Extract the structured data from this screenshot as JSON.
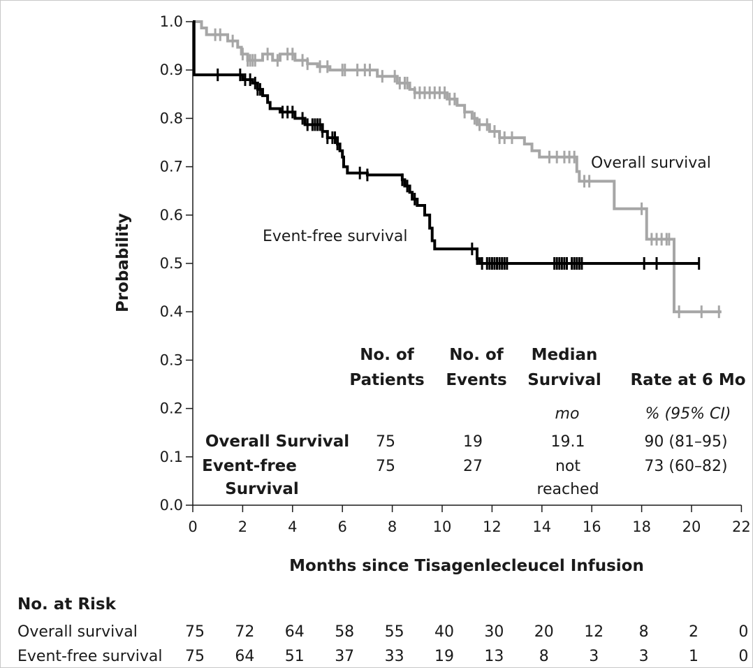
{
  "chart_data": {
    "type": "line",
    "subtype": "kaplan-meier",
    "xlabel": "Months since Tisagenlecleucel Infusion",
    "ylabel": "Probability",
    "xlim": [
      0,
      22
    ],
    "ylim": [
      0.0,
      1.0
    ],
    "x_ticks": [
      "0",
      "2",
      "4",
      "6",
      "8",
      "10",
      "12",
      "14",
      "16",
      "18",
      "20",
      "22"
    ],
    "y_ticks": [
      "0.0",
      "0.1",
      "0.2",
      "0.3",
      "0.4",
      "0.5",
      "0.6",
      "0.7",
      "0.8",
      "0.9",
      "1.0"
    ],
    "series": [
      {
        "name": "Overall survival",
        "color": "#a6a6a6",
        "steps": [
          [
            0,
            1.0
          ],
          [
            0.35,
            0.987
          ],
          [
            0.55,
            0.973
          ],
          [
            1.4,
            0.96
          ],
          [
            1.8,
            0.947
          ],
          [
            1.95,
            0.933
          ],
          [
            2.2,
            0.92
          ],
          [
            2.8,
            0.933
          ],
          [
            3.2,
            0.92
          ],
          [
            3.5,
            0.933
          ],
          [
            4.1,
            0.92
          ],
          [
            4.6,
            0.913
          ],
          [
            5.0,
            0.907
          ],
          [
            5.5,
            0.9
          ],
          [
            7.4,
            0.887
          ],
          [
            8.2,
            0.873
          ],
          [
            8.7,
            0.86
          ],
          [
            8.9,
            0.853
          ],
          [
            10.2,
            0.84
          ],
          [
            10.6,
            0.827
          ],
          [
            10.9,
            0.813
          ],
          [
            11.2,
            0.8
          ],
          [
            11.4,
            0.787
          ],
          [
            11.9,
            0.773
          ],
          [
            12.3,
            0.76
          ],
          [
            13.3,
            0.747
          ],
          [
            13.6,
            0.733
          ],
          [
            13.9,
            0.72
          ],
          [
            15.4,
            0.69
          ],
          [
            15.5,
            0.67
          ],
          [
            16.9,
            0.613
          ],
          [
            18.2,
            0.55
          ],
          [
            19.3,
            0.4
          ]
        ],
        "end": 21.2,
        "censors": [
          0.9,
          1.1,
          1.6,
          2.0,
          2.2,
          2.3,
          2.4,
          2.5,
          3.0,
          3.4,
          3.8,
          4.0,
          4.4,
          4.6,
          5.1,
          5.4,
          6.0,
          6.1,
          6.6,
          6.9,
          7.1,
          7.6,
          8.1,
          8.3,
          8.5,
          8.6,
          8.9,
          9.1,
          9.3,
          9.5,
          9.7,
          9.9,
          10.1,
          10.3,
          10.5,
          10.9,
          11.3,
          11.5,
          11.8,
          12.1,
          12.3,
          12.5,
          12.8,
          14.3,
          14.6,
          14.9,
          15.1,
          15.3,
          15.7,
          15.9,
          18.0,
          18.4,
          18.6,
          18.8,
          19.0,
          19.1,
          19.5,
          20.4,
          21.1
        ]
      },
      {
        "name": "Event-free survival",
        "color": "#000000",
        "steps": [
          [
            0,
            1.0
          ],
          [
            0.05,
            0.89
          ],
          [
            2.0,
            0.88
          ],
          [
            2.4,
            0.873
          ],
          [
            2.6,
            0.86
          ],
          [
            2.8,
            0.847
          ],
          [
            3.0,
            0.833
          ],
          [
            3.1,
            0.82
          ],
          [
            3.5,
            0.813
          ],
          [
            4.1,
            0.8
          ],
          [
            4.5,
            0.787
          ],
          [
            5.2,
            0.773
          ],
          [
            5.4,
            0.76
          ],
          [
            5.8,
            0.747
          ],
          [
            5.9,
            0.733
          ],
          [
            6.0,
            0.72
          ],
          [
            6.05,
            0.7
          ],
          [
            6.1,
            0.7
          ],
          [
            6.2,
            0.687
          ],
          [
            7.0,
            0.683
          ],
          [
            8.4,
            0.673
          ],
          [
            8.5,
            0.66
          ],
          [
            8.7,
            0.647
          ],
          [
            8.8,
            0.633
          ],
          [
            9.0,
            0.62
          ],
          [
            9.3,
            0.6
          ],
          [
            9.5,
            0.573
          ],
          [
            9.6,
            0.547
          ],
          [
            9.7,
            0.53
          ],
          [
            11.0,
            0.53
          ],
          [
            11.4,
            0.51
          ],
          [
            11.5,
            0.5
          ],
          [
            11.6,
            0.5
          ]
        ],
        "end": 20.3,
        "censors": [
          1.0,
          1.9,
          2.1,
          2.3,
          2.5,
          2.6,
          2.7,
          3.6,
          3.8,
          4.0,
          4.4,
          4.6,
          4.8,
          4.9,
          5.0,
          5.1,
          5.2,
          5.4,
          5.6,
          5.7,
          5.8,
          6.7,
          7.0,
          8.4,
          8.6,
          8.9,
          11.2,
          11.4,
          11.6,
          11.8,
          11.9,
          12.0,
          12.1,
          12.2,
          12.3,
          12.4,
          12.5,
          12.6,
          14.5,
          14.6,
          14.7,
          14.8,
          14.9,
          15.0,
          15.2,
          15.3,
          15.4,
          15.5,
          15.6,
          18.1,
          18.6,
          20.3
        ]
      }
    ],
    "annotations": [
      {
        "text": "Overall survival",
        "series": "Overall survival"
      },
      {
        "text": "Event-free survival",
        "series": "Event-free survival"
      }
    ],
    "table": {
      "headers": [
        {
          "lines": [
            "No. of",
            "Patients"
          ]
        },
        {
          "lines": [
            "No. of",
            "Events"
          ]
        },
        {
          "lines": [
            "Median",
            "Survival"
          ],
          "unit": "mo"
        },
        {
          "lines": [
            "",
            "Rate at 6 Mo"
          ],
          "unit": "% (95% CI)"
        }
      ],
      "rows": [
        {
          "label_lines": [
            "Overall Survival"
          ],
          "patients": "75",
          "events": "19",
          "median_lines": [
            "19.1"
          ],
          "rate": "90 (81–95)"
        },
        {
          "label_lines": [
            "Event-free",
            "Survival"
          ],
          "patients": "75",
          "events": "27",
          "median_lines": [
            "not",
            "reached"
          ],
          "rate": "73 (60–82)"
        }
      ]
    },
    "risk_table": {
      "title": "No. at Risk",
      "rows": [
        {
          "label": "Overall survival",
          "values": [
            "75",
            "72",
            "64",
            "58",
            "55",
            "40",
            "30",
            "20",
            "12",
            "8",
            "2",
            "0"
          ]
        },
        {
          "label": "Event-free survival",
          "values": [
            "75",
            "64",
            "51",
            "37",
            "33",
            "19",
            "13",
            "8",
            "3",
            "3",
            "1",
            "0"
          ]
        }
      ]
    }
  }
}
